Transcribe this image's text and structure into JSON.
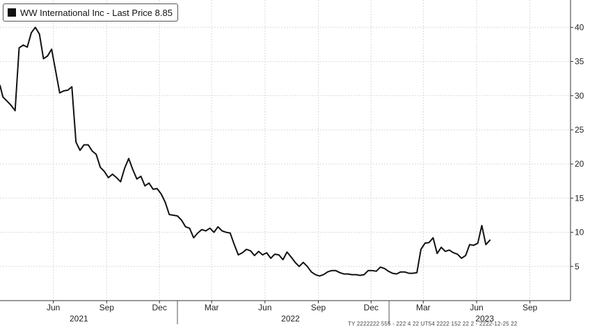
{
  "legend": {
    "label": "WW International Inc - Last Price 8.85",
    "color": "#111111"
  },
  "footer": "TY 2222222 555 - 222 4 22 UT54 2222 152 22 2 - 2222-12-25 22",
  "chart_data": {
    "type": "line",
    "title": "WW International Inc - Last Price 8.85",
    "xlabel": "",
    "ylabel": "",
    "ylim": [
      0,
      44
    ],
    "xlim": [
      "2021-03-01",
      "2023-11-10"
    ],
    "grid": true,
    "legend_position": "top-left",
    "y_axis_side": "right",
    "y_ticks": [
      5,
      10,
      15,
      20,
      25,
      30,
      35,
      40
    ],
    "x_month_ticks": [
      {
        "label": "Jun",
        "date": "2021-06-01"
      },
      {
        "label": "Sep",
        "date": "2021-09-01"
      },
      {
        "label": "Dec",
        "date": "2021-12-01"
      },
      {
        "label": "Mar",
        "date": "2022-03-01"
      },
      {
        "label": "Jun",
        "date": "2022-06-01"
      },
      {
        "label": "Sep",
        "date": "2022-09-01"
      },
      {
        "label": "Dec",
        "date": "2022-12-01"
      },
      {
        "label": "Mar",
        "date": "2023-03-01"
      },
      {
        "label": "Jun",
        "date": "2023-06-01"
      },
      {
        "label": "Sep",
        "date": "2023-09-01"
      }
    ],
    "x_year_ticks": [
      {
        "label": "2021",
        "date": "2021-07-15"
      },
      {
        "label": "2022",
        "date": "2022-07-15"
      },
      {
        "label": "2023",
        "date": "2023-06-15"
      }
    ],
    "x_year_boundaries": [
      "2022-01-01",
      "2023-01-01"
    ],
    "series": [
      {
        "name": "WW International Inc",
        "color": "#111111",
        "points": [
          [
            "2021-03-01",
            31.5
          ],
          [
            "2021-03-06",
            29.8
          ],
          [
            "2021-03-13",
            29.2
          ],
          [
            "2021-03-20",
            28.6
          ],
          [
            "2021-03-27",
            27.8
          ],
          [
            "2021-04-03",
            37.0
          ],
          [
            "2021-04-10",
            37.4
          ],
          [
            "2021-04-17",
            37.1
          ],
          [
            "2021-04-24",
            39.2
          ],
          [
            "2021-05-01",
            40.0
          ],
          [
            "2021-05-08",
            39.0
          ],
          [
            "2021-05-15",
            35.4
          ],
          [
            "2021-05-22",
            35.8
          ],
          [
            "2021-05-29",
            36.8
          ],
          [
            "2021-06-05",
            33.6
          ],
          [
            "2021-06-12",
            30.4
          ],
          [
            "2021-06-19",
            30.7
          ],
          [
            "2021-06-26",
            30.8
          ],
          [
            "2021-07-03",
            31.3
          ],
          [
            "2021-07-10",
            23.2
          ],
          [
            "2021-07-17",
            22.0
          ],
          [
            "2021-07-24",
            22.8
          ],
          [
            "2021-07-31",
            22.8
          ],
          [
            "2021-08-07",
            21.9
          ],
          [
            "2021-08-14",
            21.4
          ],
          [
            "2021-08-21",
            19.5
          ],
          [
            "2021-08-28",
            18.9
          ],
          [
            "2021-09-04",
            18.0
          ],
          [
            "2021-09-11",
            18.5
          ],
          [
            "2021-09-18",
            18.0
          ],
          [
            "2021-09-25",
            17.4
          ],
          [
            "2021-10-02",
            19.4
          ],
          [
            "2021-10-09",
            20.8
          ],
          [
            "2021-10-16",
            19.2
          ],
          [
            "2021-10-23",
            17.8
          ],
          [
            "2021-10-30",
            18.2
          ],
          [
            "2021-11-06",
            16.8
          ],
          [
            "2021-11-13",
            17.2
          ],
          [
            "2021-11-20",
            16.3
          ],
          [
            "2021-11-27",
            16.4
          ],
          [
            "2021-12-04",
            15.6
          ],
          [
            "2021-12-11",
            14.4
          ],
          [
            "2021-12-18",
            12.6
          ],
          [
            "2021-12-25",
            12.5
          ],
          [
            "2022-01-01",
            12.4
          ],
          [
            "2022-01-08",
            11.8
          ],
          [
            "2022-01-15",
            10.8
          ],
          [
            "2022-01-22",
            10.6
          ],
          [
            "2022-01-29",
            9.2
          ],
          [
            "2022-02-05",
            9.9
          ],
          [
            "2022-02-12",
            10.4
          ],
          [
            "2022-02-19",
            10.2
          ],
          [
            "2022-02-26",
            10.6
          ],
          [
            "2022-03-05",
            10.0
          ],
          [
            "2022-03-12",
            10.8
          ],
          [
            "2022-03-19",
            10.2
          ],
          [
            "2022-03-26",
            10.0
          ],
          [
            "2022-04-02",
            9.9
          ],
          [
            "2022-04-09",
            8.2
          ],
          [
            "2022-04-16",
            6.7
          ],
          [
            "2022-04-23",
            7.0
          ],
          [
            "2022-04-30",
            7.5
          ],
          [
            "2022-05-07",
            7.3
          ],
          [
            "2022-05-14",
            6.6
          ],
          [
            "2022-05-21",
            7.2
          ],
          [
            "2022-05-28",
            6.7
          ],
          [
            "2022-06-04",
            7.0
          ],
          [
            "2022-06-11",
            6.2
          ],
          [
            "2022-06-18",
            6.8
          ],
          [
            "2022-06-25",
            6.7
          ],
          [
            "2022-07-02",
            6.0
          ],
          [
            "2022-07-09",
            7.1
          ],
          [
            "2022-07-16",
            6.4
          ],
          [
            "2022-07-23",
            5.6
          ],
          [
            "2022-07-30",
            5.0
          ],
          [
            "2022-08-06",
            5.6
          ],
          [
            "2022-08-13",
            5.0
          ],
          [
            "2022-08-20",
            4.2
          ],
          [
            "2022-08-27",
            3.8
          ],
          [
            "2022-09-03",
            3.6
          ],
          [
            "2022-09-10",
            3.8
          ],
          [
            "2022-09-17",
            4.2
          ],
          [
            "2022-09-24",
            4.4
          ],
          [
            "2022-10-01",
            4.4
          ],
          [
            "2022-10-08",
            4.1
          ],
          [
            "2022-10-15",
            3.9
          ],
          [
            "2022-10-22",
            3.9
          ],
          [
            "2022-10-29",
            3.8
          ],
          [
            "2022-11-05",
            3.8
          ],
          [
            "2022-11-12",
            3.7
          ],
          [
            "2022-11-19",
            3.8
          ],
          [
            "2022-11-26",
            4.4
          ],
          [
            "2022-12-03",
            4.4
          ],
          [
            "2022-12-10",
            4.3
          ],
          [
            "2022-12-17",
            4.9
          ],
          [
            "2022-12-24",
            4.7
          ],
          [
            "2022-12-31",
            4.3
          ],
          [
            "2023-01-07",
            4.0
          ],
          [
            "2023-01-14",
            3.9
          ],
          [
            "2023-01-21",
            4.2
          ],
          [
            "2023-01-28",
            4.2
          ],
          [
            "2023-02-04",
            4.0
          ],
          [
            "2023-02-11",
            4.0
          ],
          [
            "2023-02-18",
            4.1
          ],
          [
            "2023-02-25",
            7.5
          ],
          [
            "2023-03-04",
            8.4
          ],
          [
            "2023-03-11",
            8.5
          ],
          [
            "2023-03-18",
            9.2
          ],
          [
            "2023-03-25",
            6.9
          ],
          [
            "2023-04-01",
            7.8
          ],
          [
            "2023-04-08",
            7.2
          ],
          [
            "2023-04-15",
            7.4
          ],
          [
            "2023-04-22",
            7.0
          ],
          [
            "2023-04-29",
            6.8
          ],
          [
            "2023-05-06",
            6.2
          ],
          [
            "2023-05-13",
            6.6
          ],
          [
            "2023-05-20",
            8.2
          ],
          [
            "2023-05-27",
            8.1
          ],
          [
            "2023-06-03",
            8.4
          ],
          [
            "2023-06-10",
            11.0
          ],
          [
            "2023-06-17",
            8.2
          ],
          [
            "2023-06-24",
            8.85
          ]
        ]
      }
    ]
  }
}
